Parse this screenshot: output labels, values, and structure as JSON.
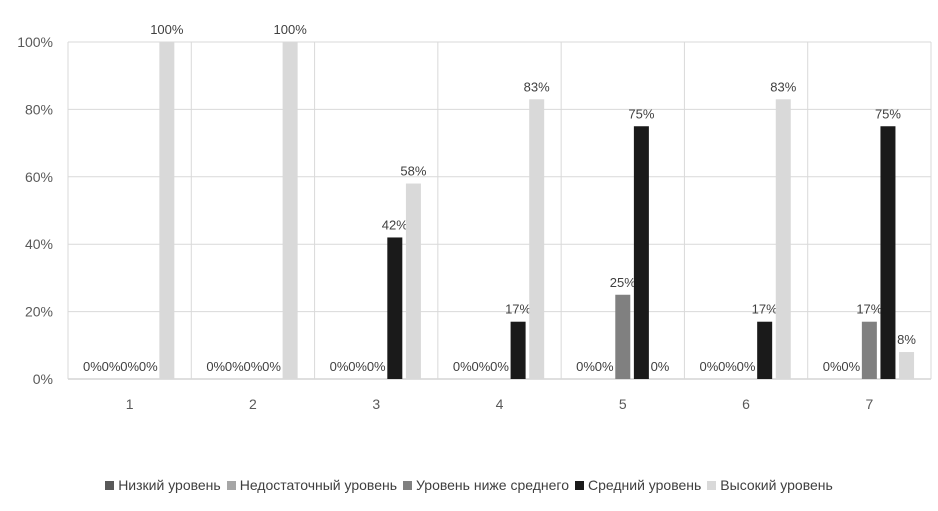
{
  "chart_data": {
    "type": "bar",
    "categories": [
      "1",
      "2",
      "3",
      "4",
      "5",
      "6",
      "7"
    ],
    "series": [
      {
        "name": "Низкий уровень",
        "color": "#595959",
        "values": [
          0,
          0,
          0,
          0,
          0,
          0,
          0
        ],
        "labels": [
          "0%",
          "0%",
          "0%",
          "0%",
          "0%",
          "0%",
          "0%"
        ]
      },
      {
        "name": "Недостаточный уровень",
        "color": "#a6a6a6",
        "values": [
          0,
          0,
          0,
          0,
          0,
          0,
          0
        ],
        "labels": [
          "0%",
          "0%",
          "0%",
          "0%",
          "0%",
          "0%",
          "0%"
        ]
      },
      {
        "name": "Уровень ниже среднего",
        "color": "#808080",
        "values": [
          0,
          0,
          0,
          0,
          25,
          0,
          17
        ],
        "labels": [
          "0%",
          "0%",
          "0%",
          "0%",
          "25%",
          "0%",
          "17%"
        ]
      },
      {
        "name": "Средний уровень",
        "color": "#1a1a1a",
        "values": [
          0,
          0,
          42,
          17,
          75,
          17,
          75
        ],
        "labels": [
          "0%",
          "0%",
          "42%",
          "17%",
          "75%",
          "17%",
          "75%"
        ]
      },
      {
        "name": "Высокий уровень",
        "color": "#d9d9d9",
        "values": [
          100,
          100,
          58,
          83,
          0,
          83,
          8
        ],
        "labels": [
          "100%",
          "100%",
          "58%",
          "83%",
          "0%",
          "83%",
          "8%"
        ]
      }
    ],
    "yticks": [
      "0%",
      "20%",
      "40%",
      "60%",
      "80%",
      "100%"
    ],
    "ylim": [
      0,
      100
    ],
    "grid": true,
    "legend_position": "bottom"
  }
}
